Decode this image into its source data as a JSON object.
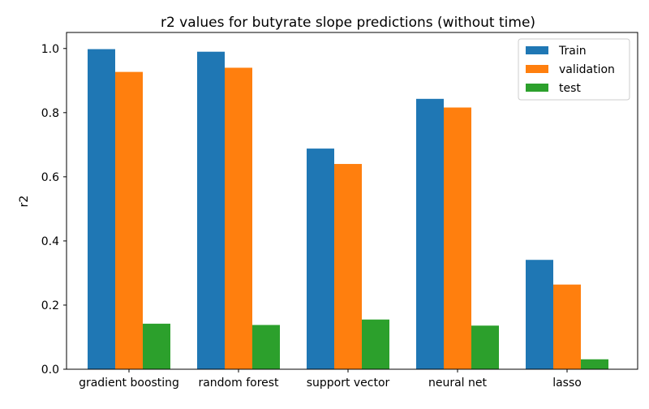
{
  "chart_data": {
    "type": "bar",
    "title": "r2 values for butyrate slope predictions (without time)",
    "xlabel": "",
    "ylabel": "r2",
    "categories": [
      "gradient boosting",
      "random forest",
      "support vector",
      "neural net",
      "lasso"
    ],
    "series": [
      {
        "name": "Train",
        "color": "#1f77b4",
        "values": [
          0.998,
          0.99,
          0.688,
          0.843,
          0.341
        ]
      },
      {
        "name": "validation",
        "color": "#ff7f0e",
        "values": [
          0.927,
          0.94,
          0.64,
          0.816,
          0.264
        ]
      },
      {
        "name": "test",
        "color": "#2ca02c",
        "values": [
          0.142,
          0.138,
          0.155,
          0.136,
          0.031
        ]
      }
    ],
    "ylim": [
      0.0,
      1.05
    ],
    "yticks": [
      "0.0",
      "0.2",
      "0.4",
      "0.6",
      "0.8",
      "1.0"
    ],
    "grid": false,
    "legend_position": "top-right"
  }
}
